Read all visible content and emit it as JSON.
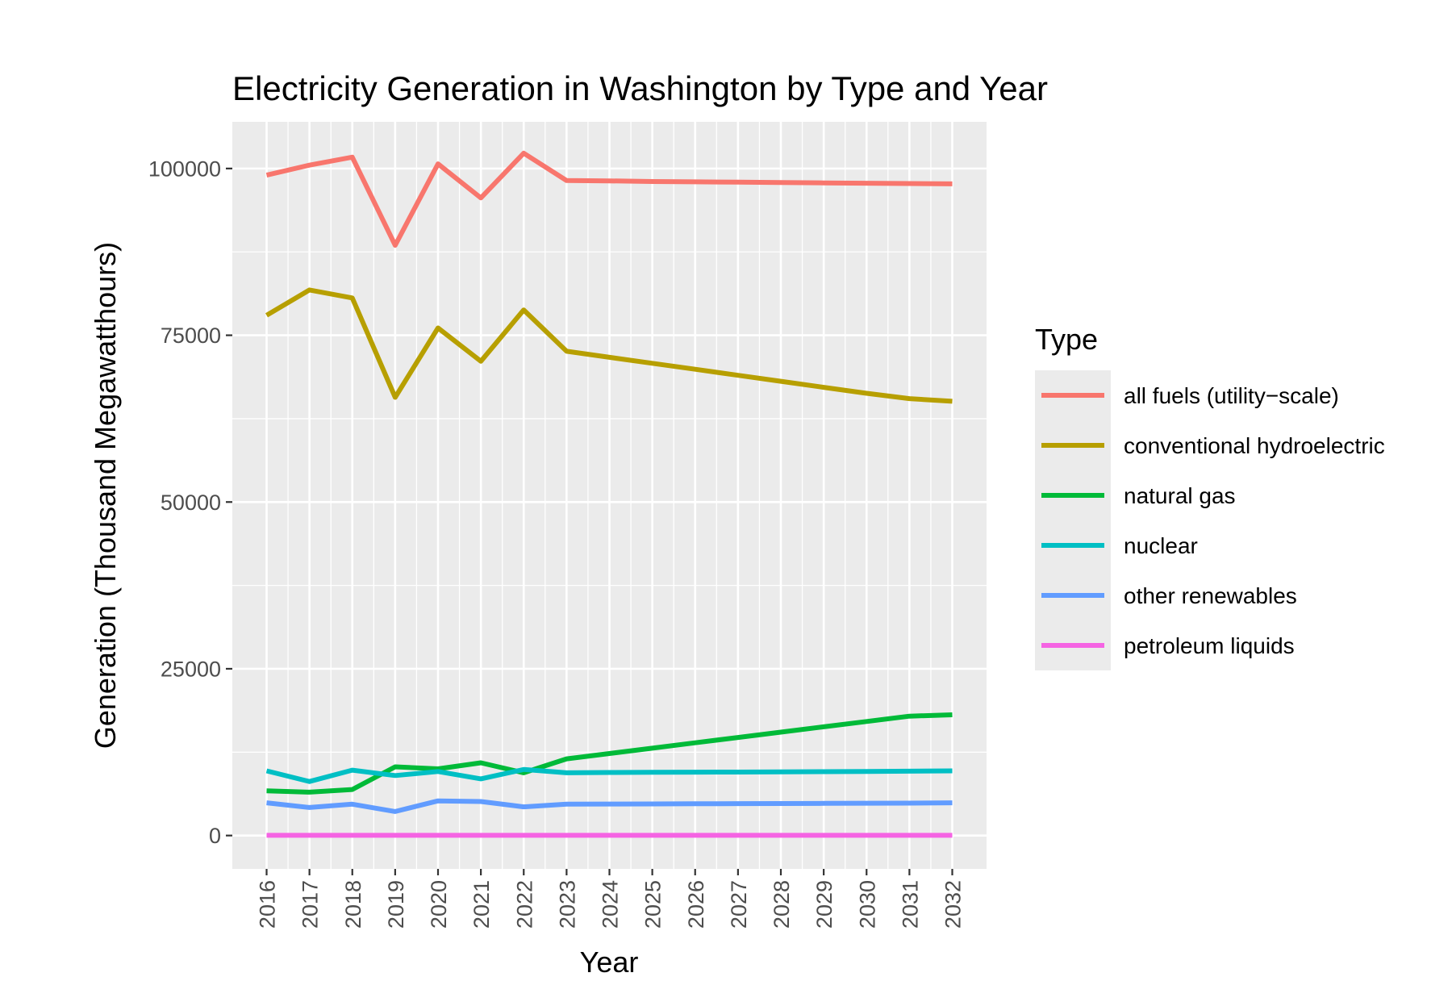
{
  "chart_data": {
    "type": "line",
    "title": "Electricity Generation in Washington by Type and Year",
    "xlabel": "Year",
    "ylabel": "Generation (Thousand Megawatthours)",
    "x": [
      2016,
      2017,
      2018,
      2019,
      2020,
      2021,
      2022,
      2023,
      2024,
      2025,
      2026,
      2027,
      2028,
      2029,
      2030,
      2031,
      2032
    ],
    "xlim": [
      2015.2,
      2032.8
    ],
    "ylim": [
      -5000,
      107000
    ],
    "y_ticks": [
      0,
      25000,
      50000,
      75000,
      100000
    ],
    "x_tick_labels": [
      "2016",
      "2017",
      "2018",
      "2019",
      "2020",
      "2021",
      "2022",
      "2023",
      "2024",
      "2025",
      "2026",
      "2027",
      "2028",
      "2029",
      "2030",
      "2031",
      "2032"
    ],
    "y_tick_labels": [
      "0",
      "25000",
      "50000",
      "75000",
      "100000"
    ],
    "grid": true,
    "legend": {
      "title": "Type",
      "position": "right"
    },
    "series": [
      {
        "name": "all fuels (utility−scale)",
        "color": "#F8766D",
        "values": [
          99000,
          100500,
          101700,
          88500,
          100700,
          95600,
          102300,
          98200,
          98150,
          98050,
          98000,
          97950,
          97900,
          97850,
          97800,
          97750,
          97700
        ]
      },
      {
        "name": "conventional hydroelectric",
        "color": "#B79F00",
        "values": [
          78000,
          81800,
          80600,
          65700,
          76100,
          71100,
          78800,
          72600,
          71700,
          70800,
          69900,
          69000,
          68100,
          67200,
          66300,
          65500,
          65100
        ]
      },
      {
        "name": "natural gas",
        "color": "#00BA38",
        "values": [
          6700,
          6500,
          6900,
          10300,
          10000,
          10900,
          9400,
          11500,
          12300,
          13100,
          13900,
          14700,
          15500,
          16300,
          17100,
          17900,
          18100
        ]
      },
      {
        "name": "nuclear",
        "color": "#00BFC4",
        "values": [
          9700,
          8100,
          9800,
          9000,
          9600,
          8500,
          9900,
          9400,
          9450,
          9480,
          9500,
          9520,
          9550,
          9580,
          9600,
          9650,
          9700
        ]
      },
      {
        "name": "other renewables",
        "color": "#619CFF",
        "values": [
          4900,
          4200,
          4700,
          3600,
          5200,
          5100,
          4300,
          4700,
          4720,
          4740,
          4760,
          4780,
          4800,
          4820,
          4840,
          4860,
          4900
        ]
      },
      {
        "name": "petroleum liquids",
        "color": "#F564E3",
        "values": [
          30,
          30,
          30,
          30,
          30,
          30,
          30,
          30,
          30,
          30,
          30,
          30,
          30,
          30,
          30,
          30,
          30
        ]
      }
    ]
  }
}
